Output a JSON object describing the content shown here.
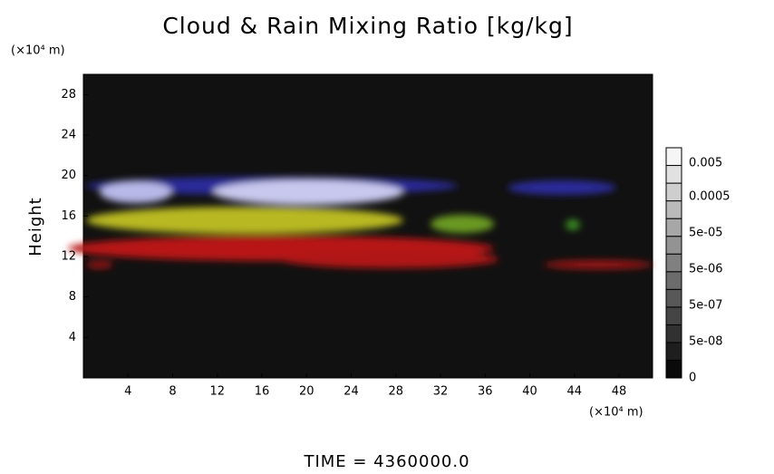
{
  "chart_data": {
    "type": "image",
    "title": "Cloud & Rain Mixing Ratio [kg/kg]",
    "y_label": "Height",
    "x_unit": "(×10⁴ m)",
    "y_unit": "(×10⁴ m)",
    "xlim": [
      0,
      51
    ],
    "ylim": [
      0,
      30
    ],
    "xticks": [
      4,
      8,
      12,
      16,
      20,
      24,
      28,
      32,
      36,
      40,
      44,
      48
    ],
    "yticks": [
      4,
      8,
      12,
      16,
      20,
      24,
      28
    ],
    "colorbar_ticks": [
      0,
      {
        "value": 5e-08,
        "label": "5e-08"
      },
      {
        "value": 5e-07,
        "label": "5e-07"
      },
      {
        "value": 5e-06,
        "label": "5e-06"
      },
      {
        "value": 5e-05,
        "label": "5e-05"
      },
      0.0005,
      0.005
    ],
    "footer": "TIME = 4360000.0"
  }
}
